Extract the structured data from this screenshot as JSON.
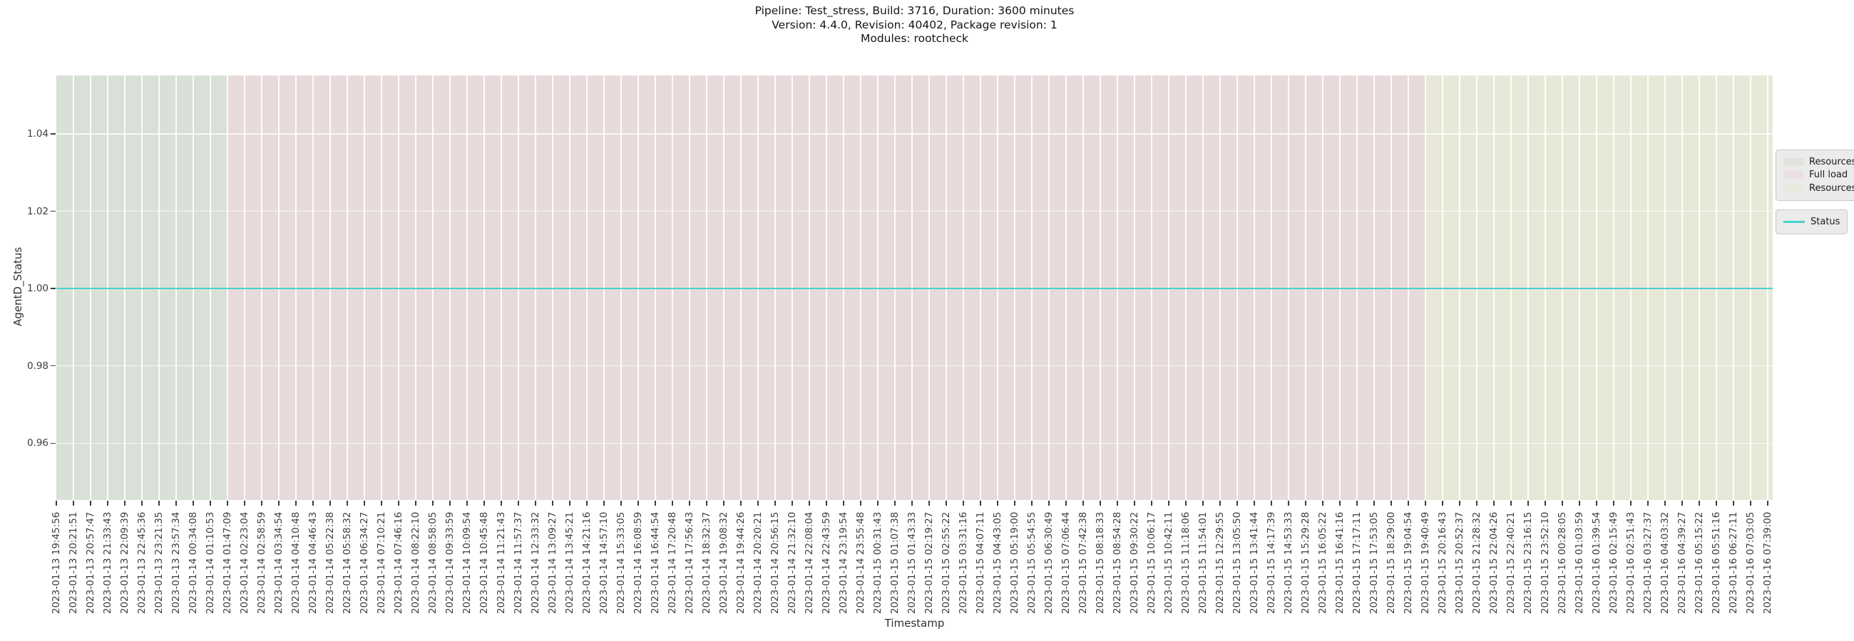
{
  "title": {
    "line1": "Pipeline: Test_stress, Build: 3716, Duration: 3600 minutes",
    "line2": "Version: 4.4.0, Revision: 40402, Package revision: 1",
    "line3": "Modules: rootcheck"
  },
  "axes": {
    "x_label": "Timestamp",
    "y_label": "AgentD_Status"
  },
  "legend": {
    "regions": [
      {
        "label": "Resources",
        "color": "#d9e0d7"
      },
      {
        "label": "Full load",
        "color": "#e7dada"
      },
      {
        "label": "Resources",
        "color": "#e8e8d8"
      }
    ],
    "line": {
      "label": "Status",
      "color": "#48d2cf"
    }
  },
  "colors": {
    "region_green": "#d9e0d7",
    "region_pink": "#e7dada",
    "region_olive": "#e8e8d8",
    "status_line": "#48d2cf",
    "grid": "#ffffff",
    "tick_text": "#3d3d3d"
  },
  "chart_data": {
    "type": "line",
    "title": "Pipeline: Test_stress, Build: 3716, Duration: 3600 minutes / Version: 4.4.0, Revision: 40402, Package revision: 1 / Modules: rootcheck",
    "xlabel": "Timestamp",
    "ylabel": "AgentD_Status",
    "ylim": [
      0.9453,
      1.0551
    ],
    "yticks": [
      1.04,
      1.02,
      1.0,
      0.98,
      0.96
    ],
    "grid": true,
    "legend_position": "outside-right",
    "x_tick_labels": [
      "2023-01-13 19:45:56",
      "2023-01-13 20:21:51",
      "2023-01-13 20:57:47",
      "2023-01-13 21:33:43",
      "2023-01-13 22:09:39",
      "2023-01-13 22:45:36",
      "2023-01-13 23:21:35",
      "2023-01-13 23:57:34",
      "2023-01-14 00:34:08",
      "2023-01-14 01:10:53",
      "2023-01-14 01:47:09",
      "2023-01-14 02:23:04",
      "2023-01-14 02:58:59",
      "2023-01-14 03:34:54",
      "2023-01-14 04:10:48",
      "2023-01-14 04:46:43",
      "2023-01-14 05:22:38",
      "2023-01-14 05:58:32",
      "2023-01-14 06:34:27",
      "2023-01-14 07:10:21",
      "2023-01-14 07:46:16",
      "2023-01-14 08:22:10",
      "2023-01-14 08:58:05",
      "2023-01-14 09:33:59",
      "2023-01-14 10:09:54",
      "2023-01-14 10:45:48",
      "2023-01-14 11:21:43",
      "2023-01-14 11:57:37",
      "2023-01-14 12:33:32",
      "2023-01-14 13:09:27",
      "2023-01-14 13:45:21",
      "2023-01-14 14:21:16",
      "2023-01-14 14:57:10",
      "2023-01-14 15:33:05",
      "2023-01-14 16:08:59",
      "2023-01-14 16:44:54",
      "2023-01-14 17:20:48",
      "2023-01-14 17:56:43",
      "2023-01-14 18:32:37",
      "2023-01-14 19:08:32",
      "2023-01-14 19:44:26",
      "2023-01-14 20:20:21",
      "2023-01-14 20:56:15",
      "2023-01-14 21:32:10",
      "2023-01-14 22:08:04",
      "2023-01-14 22:43:59",
      "2023-01-14 23:19:54",
      "2023-01-14 23:55:48",
      "2023-01-15 00:31:43",
      "2023-01-15 01:07:38",
      "2023-01-15 01:43:33",
      "2023-01-15 02:19:27",
      "2023-01-15 02:55:22",
      "2023-01-15 03:31:16",
      "2023-01-15 04:07:11",
      "2023-01-15 04:43:05",
      "2023-01-15 05:19:00",
      "2023-01-15 05:54:55",
      "2023-01-15 06:30:49",
      "2023-01-15 07:06:44",
      "2023-01-15 07:42:38",
      "2023-01-15 08:18:33",
      "2023-01-15 08:54:28",
      "2023-01-15 09:30:22",
      "2023-01-15 10:06:17",
      "2023-01-15 10:42:11",
      "2023-01-15 11:18:06",
      "2023-01-15 11:54:01",
      "2023-01-15 12:29:55",
      "2023-01-15 13:05:50",
      "2023-01-15 13:41:44",
      "2023-01-15 14:17:39",
      "2023-01-15 14:53:33",
      "2023-01-15 15:29:28",
      "2023-01-15 16:05:22",
      "2023-01-15 16:41:16",
      "2023-01-15 17:17:11",
      "2023-01-15 17:53:05",
      "2023-01-15 18:29:00",
      "2023-01-15 19:04:54",
      "2023-01-15 19:40:49",
      "2023-01-15 20:16:43",
      "2023-01-15 20:52:37",
      "2023-01-15 21:28:32",
      "2023-01-15 22:04:26",
      "2023-01-15 22:40:21",
      "2023-01-15 23:16:15",
      "2023-01-15 23:52:10",
      "2023-01-16 00:28:05",
      "2023-01-16 01:03:59",
      "2023-01-16 01:39:54",
      "2023-01-16 02:15:49",
      "2023-01-16 02:51:43",
      "2023-01-16 03:27:37",
      "2023-01-16 04:03:32",
      "2023-01-16 04:39:27",
      "2023-01-16 05:15:22",
      "2023-01-16 05:51:16",
      "2023-01-16 06:27:11",
      "2023-01-16 07:03:05",
      "2023-01-16 07:39:00"
    ],
    "series": [
      {
        "name": "Status",
        "color": "#48d2cf",
        "values": [
          1,
          1,
          1,
          1,
          1,
          1,
          1,
          1,
          1,
          1,
          1,
          1,
          1,
          1,
          1,
          1,
          1,
          1,
          1,
          1,
          1,
          1,
          1,
          1,
          1,
          1,
          1,
          1,
          1,
          1,
          1,
          1,
          1,
          1,
          1,
          1,
          1,
          1,
          1,
          1,
          1,
          1,
          1,
          1,
          1,
          1,
          1,
          1,
          1,
          1,
          1,
          1,
          1,
          1,
          1,
          1,
          1,
          1,
          1,
          1,
          1,
          1,
          1,
          1,
          1,
          1,
          1,
          1,
          1,
          1,
          1,
          1,
          1,
          1,
          1,
          1,
          1,
          1,
          1,
          1,
          1,
          1,
          1,
          1,
          1,
          1,
          1,
          1,
          1,
          1,
          1,
          1,
          1,
          1,
          1,
          1,
          1,
          1,
          1,
          1,
          1
        ]
      }
    ],
    "background_regions": [
      {
        "label": "Resources",
        "from": "2023-01-13 19:45:56",
        "to": "2023-01-14 01:47:09",
        "from_index": 0,
        "to_index": 10,
        "color": "#d9e0d7"
      },
      {
        "label": "Full load",
        "from": "2023-01-14 01:47:09",
        "to": "2023-01-15 19:40:49",
        "from_index": 10,
        "to_index": 80,
        "color": "#e7dada"
      },
      {
        "label": "Resources",
        "from": "2023-01-15 19:40:49",
        "to": "2023-01-16 07:39:00",
        "from_index": 80,
        "to_index": 100,
        "color": "#e8e8d8"
      }
    ]
  }
}
